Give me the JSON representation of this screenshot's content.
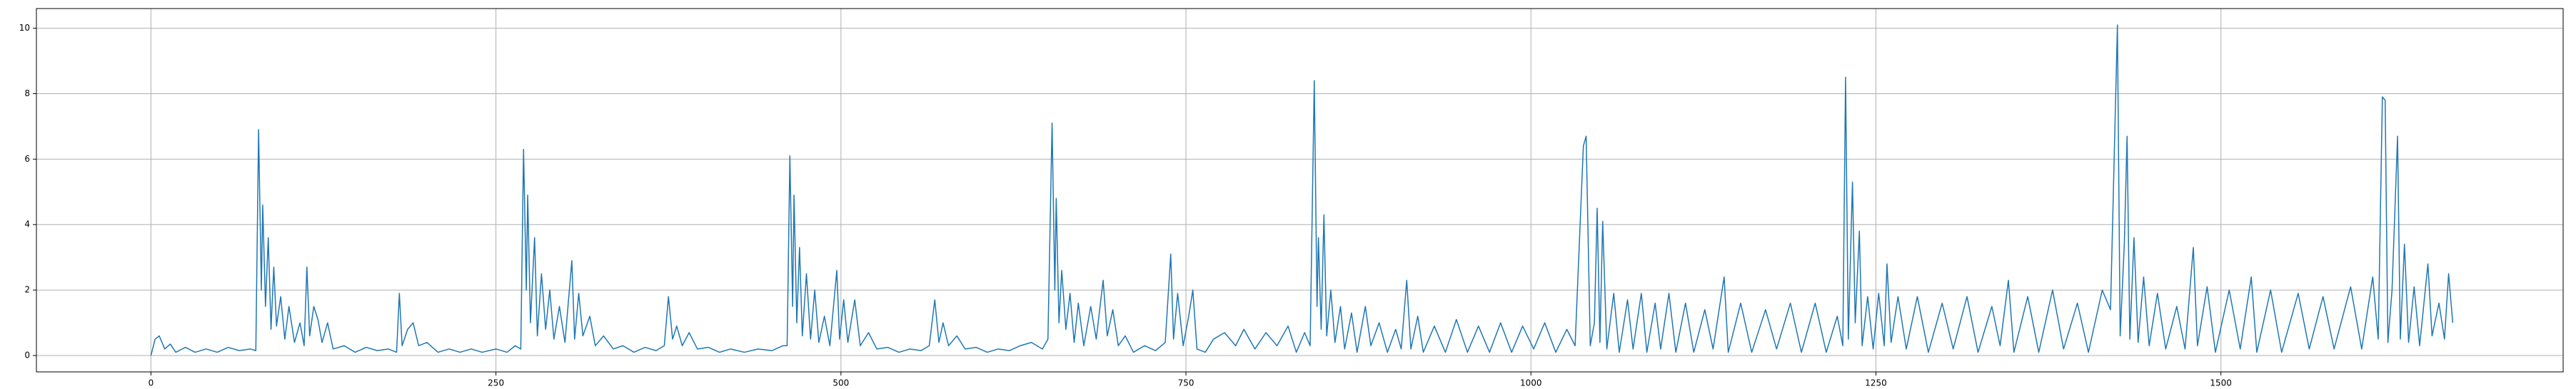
{
  "chart_data": {
    "type": "line",
    "color": "#1f77b4",
    "grid": true,
    "xlim": [
      -83,
      1748
    ],
    "xticks": [
      0,
      250,
      500,
      750,
      1000,
      1250,
      1500
    ],
    "ylim": [
      -0.5,
      10.6
    ],
    "yticks": [
      0,
      2,
      4,
      6,
      8,
      10
    ],
    "x": [
      0,
      3,
      6,
      10,
      14,
      18,
      25,
      32,
      40,
      48,
      56,
      64,
      72,
      76,
      78,
      80,
      81,
      83,
      85,
      87,
      89,
      91,
      94,
      97,
      100,
      104,
      108,
      111,
      113,
      115,
      118,
      121,
      124,
      128,
      132,
      140,
      148,
      156,
      164,
      172,
      178,
      180,
      182,
      186,
      190,
      194,
      200,
      208,
      216,
      224,
      232,
      240,
      250,
      258,
      264,
      268,
      270,
      272,
      273,
      275,
      278,
      280,
      283,
      286,
      289,
      292,
      296,
      300,
      305,
      307,
      310,
      313,
      318,
      322,
      328,
      335,
      342,
      350,
      358,
      366,
      372,
      375,
      378,
      381,
      385,
      390,
      396,
      404,
      412,
      420,
      430,
      440,
      450,
      458,
      461,
      463,
      465,
      466,
      468,
      470,
      472,
      475,
      478,
      481,
      484,
      488,
      492,
      497,
      499,
      502,
      505,
      510,
      514,
      520,
      526,
      534,
      542,
      550,
      558,
      564,
      568,
      571,
      574,
      578,
      584,
      590,
      598,
      606,
      614,
      622,
      630,
      638,
      646,
      650,
      653,
      655,
      656,
      658,
      660,
      663,
      666,
      669,
      672,
      676,
      681,
      685,
      690,
      693,
      697,
      701,
      706,
      712,
      720,
      728,
      735,
      739,
      741,
      744,
      748,
      752,
      755,
      758,
      764,
      770,
      778,
      786,
      792,
      800,
      808,
      816,
      824,
      830,
      836,
      840,
      843,
      845,
      846,
      848,
      850,
      852,
      855,
      858,
      862,
      865,
      870,
      874,
      880,
      884,
      890,
      896,
      902,
      906,
      910,
      913,
      918,
      922,
      930,
      938,
      946,
      954,
      962,
      970,
      978,
      986,
      994,
      1002,
      1010,
      1018,
      1026,
      1032,
      1038,
      1040,
      1043,
      1046,
      1048,
      1050,
      1052,
      1055,
      1060,
      1064,
      1070,
      1074,
      1080,
      1084,
      1090,
      1094,
      1100,
      1105,
      1112,
      1118,
      1126,
      1132,
      1140,
      1143,
      1152,
      1160,
      1170,
      1178,
      1188,
      1196,
      1206,
      1214,
      1222,
      1226,
      1228,
      1230,
      1233,
      1235,
      1238,
      1240,
      1244,
      1248,
      1252,
      1256,
      1258,
      1261,
      1266,
      1272,
      1280,
      1288,
      1298,
      1306,
      1316,
      1324,
      1334,
      1340,
      1346,
      1350,
      1360,
      1368,
      1378,
      1386,
      1396,
      1404,
      1414,
      1420,
      1425,
      1427,
      1430,
      1432,
      1434,
      1437,
      1440,
      1444,
      1448,
      1454,
      1460,
      1468,
      1474,
      1480,
      1483,
      1490,
      1496,
      1506,
      1514,
      1522,
      1526,
      1536,
      1544,
      1556,
      1564,
      1574,
      1582,
      1594,
      1602,
      1610,
      1614,
      1617,
      1619,
      1621,
      1624,
      1628,
      1630,
      1633,
      1636,
      1640,
      1644,
      1650,
      1653,
      1658,
      1662,
      1665,
      1668
    ],
    "values": [
      0,
      0.5,
      0.6,
      0.2,
      0.35,
      0.1,
      0.25,
      0.1,
      0.2,
      0.1,
      0.25,
      0.15,
      0.2,
      0.15,
      6.9,
      2.0,
      4.6,
      1.5,
      3.6,
      0.8,
      2.7,
      0.9,
      1.8,
      0.5,
      1.5,
      0.4,
      1.0,
      0.3,
      2.7,
      0.6,
      1.5,
      1.1,
      0.4,
      1.0,
      0.2,
      0.3,
      0.1,
      0.25,
      0.15,
      0.2,
      0.1,
      1.9,
      0.3,
      0.8,
      1.0,
      0.3,
      0.4,
      0.1,
      0.2,
      0.1,
      0.2,
      0.1,
      0.2,
      0.1,
      0.3,
      0.2,
      6.3,
      2.0,
      4.9,
      1.0,
      3.6,
      0.6,
      2.5,
      0.8,
      2.0,
      0.5,
      1.5,
      0.4,
      2.9,
      0.5,
      1.9,
      0.6,
      1.2,
      0.3,
      0.6,
      0.2,
      0.3,
      0.1,
      0.25,
      0.15,
      0.3,
      1.8,
      0.5,
      0.9,
      0.3,
      0.7,
      0.2,
      0.25,
      0.1,
      0.2,
      0.1,
      0.2,
      0.15,
      0.3,
      0.3,
      6.1,
      1.5,
      4.9,
      1.0,
      3.3,
      0.6,
      2.5,
      0.5,
      2.0,
      0.4,
      1.2,
      0.3,
      2.6,
      0.5,
      1.7,
      0.4,
      1.7,
      0.3,
      0.7,
      0.2,
      0.25,
      0.1,
      0.2,
      0.15,
      0.3,
      1.7,
      0.4,
      1.0,
      0.3,
      0.6,
      0.2,
      0.25,
      0.1,
      0.2,
      0.15,
      0.3,
      0.4,
      0.2,
      0.5,
      7.1,
      2.0,
      4.8,
      1.0,
      2.6,
      0.8,
      1.9,
      0.4,
      1.6,
      0.3,
      1.5,
      0.5,
      2.3,
      0.6,
      1.4,
      0.3,
      0.6,
      0.1,
      0.3,
      0.15,
      0.4,
      3.1,
      0.5,
      1.9,
      0.3,
      1.2,
      2.0,
      0.2,
      0.1,
      0.5,
      0.7,
      0.3,
      0.8,
      0.2,
      0.7,
      0.3,
      0.9,
      0.1,
      0.7,
      0.3,
      8.4,
      1.5,
      3.6,
      0.8,
      4.3,
      0.6,
      2.0,
      0.4,
      1.5,
      0.2,
      1.3,
      0.1,
      1.5,
      0.3,
      1.0,
      0.1,
      0.8,
      0.2,
      2.3,
      0.2,
      1.2,
      0.1,
      0.9,
      0.1,
      1.1,
      0.1,
      0.9,
      0.1,
      1.0,
      0.1,
      0.9,
      0.2,
      1.0,
      0.1,
      0.8,
      0.3,
      6.4,
      6.7,
      0.3,
      1.0,
      4.5,
      0.4,
      4.1,
      0.2,
      1.9,
      0.1,
      1.7,
      0.2,
      1.9,
      0.1,
      1.6,
      0.2,
      1.9,
      0.1,
      1.6,
      0.1,
      1.4,
      0.2,
      2.4,
      0.1,
      1.6,
      0.1,
      1.4,
      0.2,
      1.6,
      0.1,
      1.6,
      0.1,
      1.2,
      0.3,
      8.5,
      0.5,
      5.3,
      1.0,
      3.8,
      0.3,
      1.8,
      0.2,
      1.9,
      0.3,
      2.8,
      0.4,
      1.8,
      0.2,
      1.8,
      0.1,
      1.6,
      0.2,
      1.8,
      0.1,
      1.5,
      0.3,
      2.3,
      0.1,
      1.8,
      0.1,
      2.0,
      0.2,
      1.6,
      0.1,
      2.0,
      1.4,
      10.1,
      0.6,
      3.4,
      6.7,
      0.5,
      3.6,
      0.4,
      2.4,
      0.3,
      1.9,
      0.2,
      1.5,
      0.2,
      3.3,
      0.3,
      2.1,
      0.1,
      2.0,
      0.2,
      2.4,
      0.1,
      2.0,
      0.1,
      1.9,
      0.2,
      1.8,
      0.2,
      2.1,
      0.2,
      2.4,
      0.5,
      7.9,
      7.8,
      0.4,
      2.0,
      6.7,
      0.5,
      3.4,
      0.4,
      2.1,
      0.3,
      2.8,
      0.6,
      1.6,
      0.5,
      2.5,
      1.0
    ]
  }
}
